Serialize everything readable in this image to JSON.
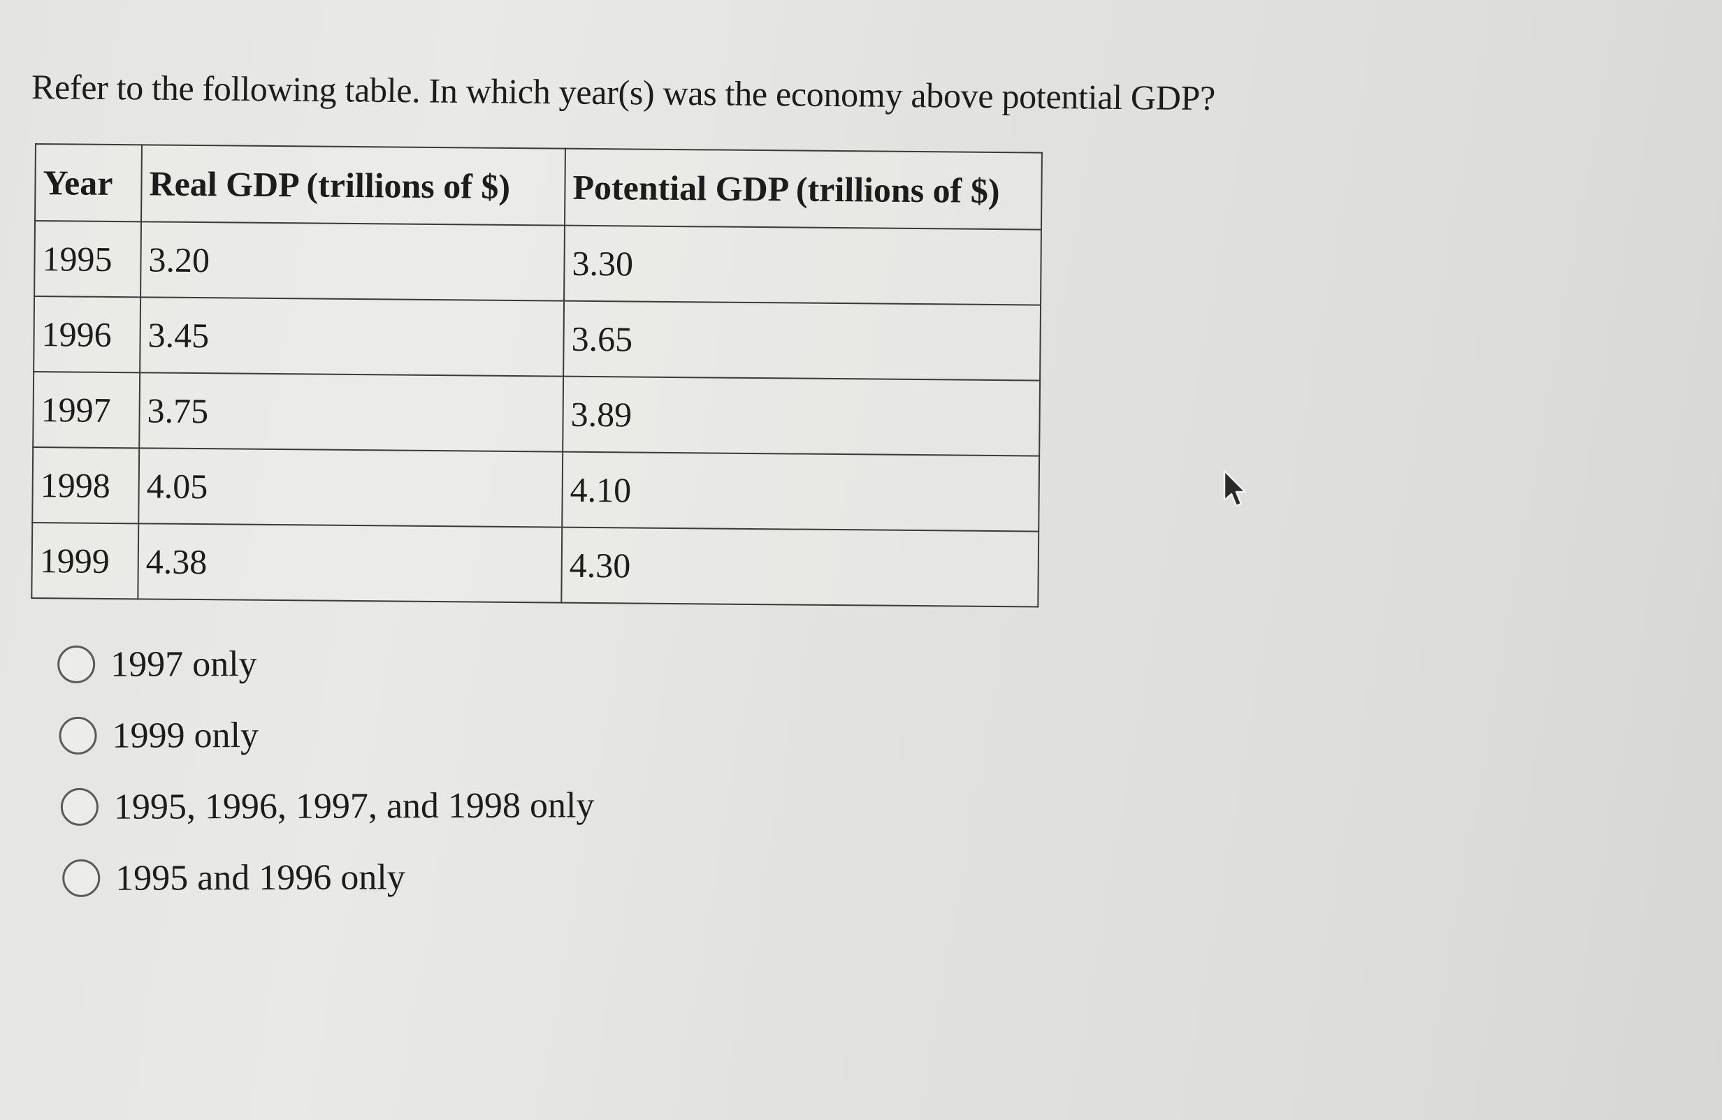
{
  "question": {
    "text": "Refer to the following table. In which year(s) was the economy above potential GDP?"
  },
  "table": {
    "headers": [
      "Year",
      "Real GDP (trillions of $)",
      "Potential GDP (trillions of $)"
    ],
    "rows": [
      {
        "year": "1995",
        "real": "3.20",
        "potential": "3.30"
      },
      {
        "year": "1996",
        "real": "3.45",
        "potential": "3.65"
      },
      {
        "year": "1997",
        "real": "3.75",
        "potential": "3.89"
      },
      {
        "year": "1998",
        "real": "4.05",
        "potential": "4.10"
      },
      {
        "year": "1999",
        "real": "4.38",
        "potential": "4.30"
      }
    ]
  },
  "options": [
    {
      "label": "1997 only",
      "selected": false
    },
    {
      "label": "1999 only",
      "selected": false
    },
    {
      "label": "1995, 1996, 1997, and 1998 only",
      "selected": false
    },
    {
      "label": "1995 and 1996 only",
      "selected": false
    }
  ],
  "icons": {
    "radio": "radio-unselected-icon",
    "cursor": "mouse-pointer-icon"
  }
}
